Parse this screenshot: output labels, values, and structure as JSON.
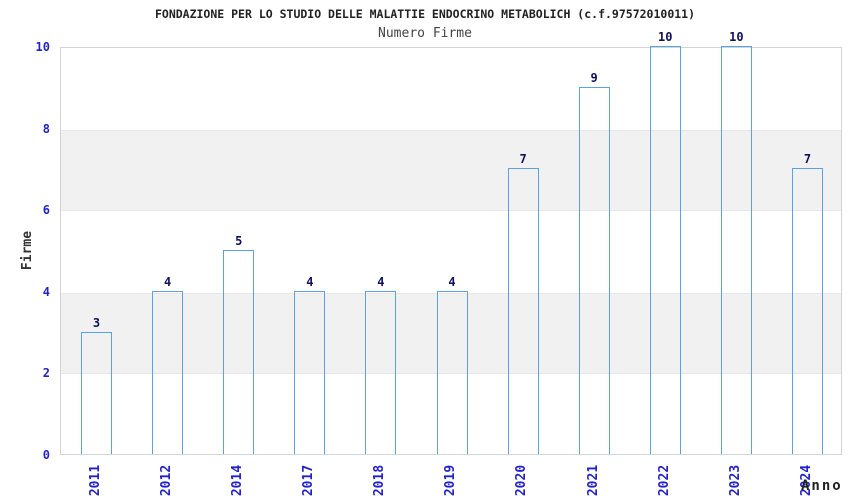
{
  "chart_data": {
    "type": "bar",
    "title": "FONDAZIONE PER LO STUDIO DELLE MALATTIE ENDOCRINO METABOLICH (c.f.97572010011)",
    "subtitle": "Numero Firme",
    "xlabel": "Anno",
    "ylabel": "Firme",
    "categories": [
      "2011",
      "2012",
      "2014",
      "2017",
      "2018",
      "2019",
      "2020",
      "2021",
      "2022",
      "2023",
      "2024"
    ],
    "values": [
      3,
      4,
      5,
      4,
      4,
      4,
      7,
      9,
      10,
      10,
      7
    ],
    "ylim": [
      0,
      10
    ],
    "yticks": [
      0,
      2,
      4,
      6,
      8,
      10
    ],
    "legend_position": "none",
    "grid": "alternating-horizontal-bands",
    "band_ranges_gray": [
      [
        2,
        4
      ],
      [
        6,
        8
      ]
    ],
    "colors": {
      "bar_dark": "#131a78",
      "bar_light": "#aeb9de",
      "bar_border": "#5aa2e8",
      "tick_label": "#2222cc",
      "value_label": "#10105e",
      "title": "#222222",
      "subtitle": "#444444",
      "axis_label": "#333333",
      "band_gray": "#f1f1f1",
      "plot_border": "#d4d4d4",
      "background": "#ffffff"
    }
  }
}
